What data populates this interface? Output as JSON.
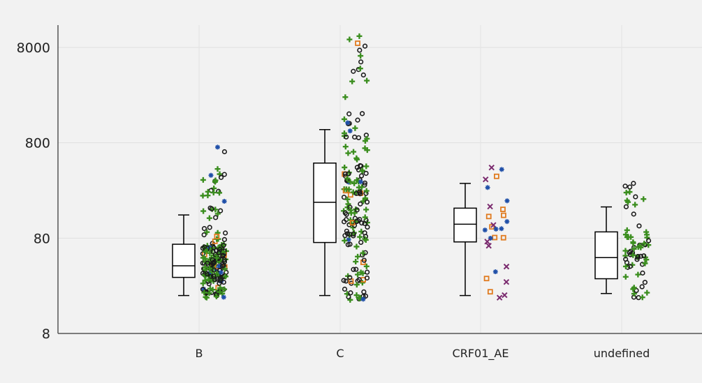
{
  "chart_data": {
    "type": "box-strip",
    "y_scale": "log",
    "ylim": [
      8,
      12000
    ],
    "grid": true,
    "yticks": [
      {
        "value": 8,
        "label": "8"
      },
      {
        "value": 80,
        "label": "80"
      },
      {
        "value": 800,
        "label": "800"
      },
      {
        "value": 8000,
        "label": "8000"
      }
    ],
    "categories": [
      "B",
      "C",
      "CRF01_AE",
      "undefined"
    ],
    "colors": {
      "circle": "#1a1a1a",
      "plus": "#3b8e1f",
      "square": "#e07b20",
      "cross": "#7a2a6e",
      "star": "#1f4fa8",
      "box": "#000000"
    },
    "boxes": [
      {
        "category": "B",
        "min": 20,
        "q1": 31,
        "median": 41,
        "q3": 69,
        "max": 140
      },
      {
        "category": "C",
        "min": 20,
        "q1": 72,
        "median": 190,
        "q3": 490,
        "max": 1100
      },
      {
        "category": "CRF01_AE",
        "min": 20,
        "q1": 73,
        "median": 112,
        "q3": 165,
        "max": 300
      },
      {
        "category": "undefined",
        "min": 21,
        "q1": 30,
        "median": 50,
        "q3": 93,
        "max": 170
      }
    ],
    "points": {
      "B": {
        "n": 220,
        "min": 19,
        "max": 720,
        "markers": [
          "circle",
          "plus",
          "square",
          "star"
        ]
      },
      "C": {
        "n": 180,
        "min": 18,
        "max": 10500,
        "markers": [
          "circle",
          "plus",
          "square",
          "star"
        ]
      },
      "CRF01_AE": {
        "n": 28,
        "min": 19,
        "max": 440,
        "markers": [
          "square",
          "cross",
          "star"
        ]
      },
      "undefined": {
        "n": 70,
        "min": 19,
        "max": 300,
        "markers": [
          "circle",
          "plus"
        ]
      }
    }
  }
}
